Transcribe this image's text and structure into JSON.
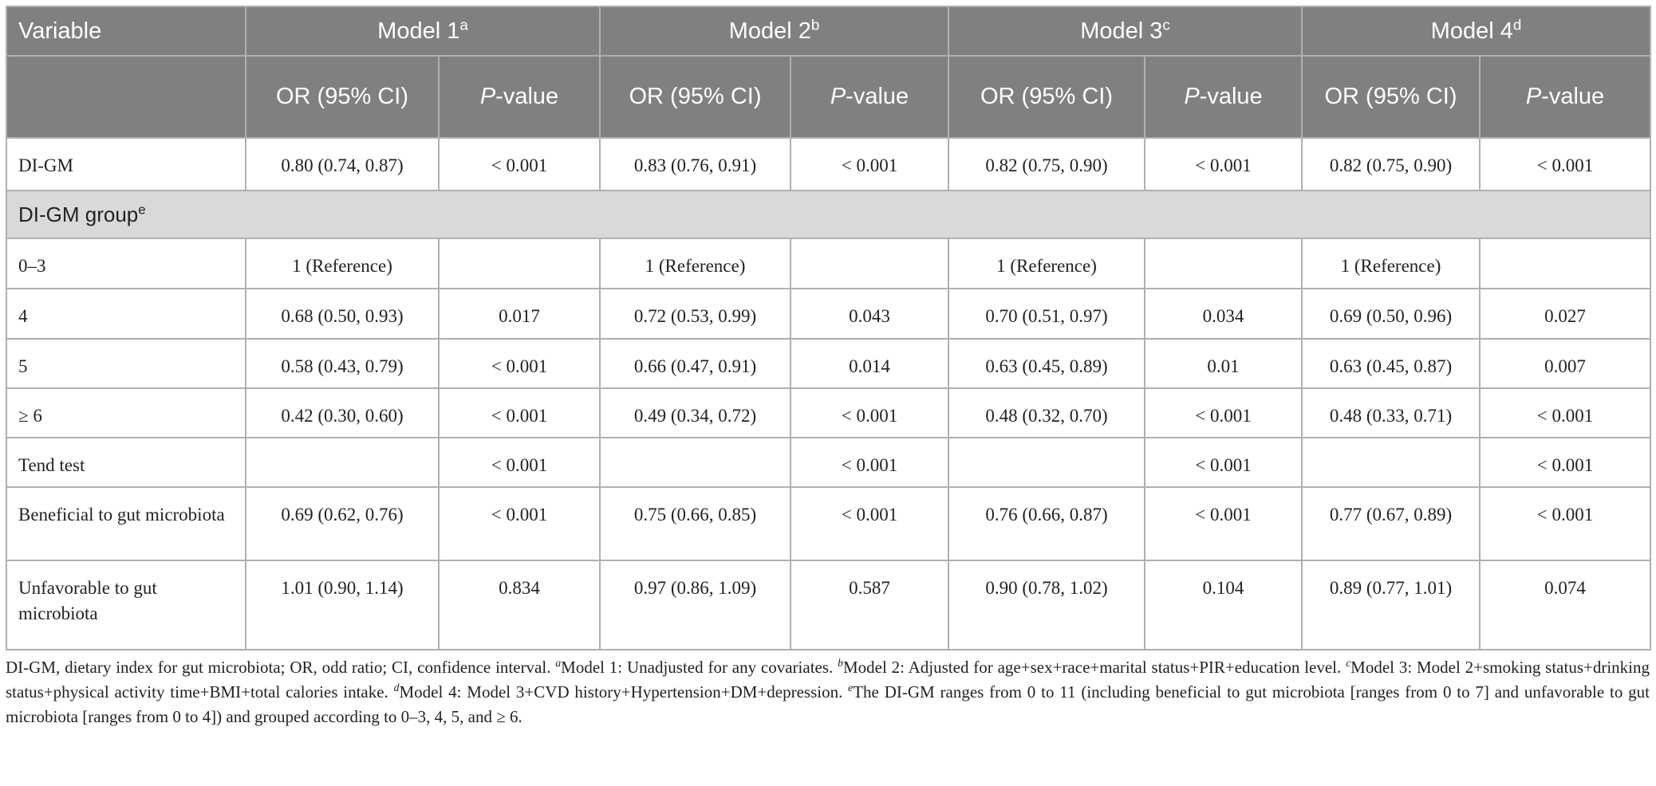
{
  "table": {
    "header": {
      "variable": "Variable",
      "models": [
        {
          "text": "Model 1",
          "sup": "a"
        },
        {
          "text": "Model 2",
          "sup": "b"
        },
        {
          "text": "Model 3",
          "sup": "c"
        },
        {
          "text": "Model 4",
          "sup": "d"
        }
      ],
      "subheaders": [
        {
          "text": "OR (95% CI)"
        },
        {
          "italic": "P",
          "text": "-value"
        },
        {
          "text": "OR (95% CI)"
        },
        {
          "italic": "P",
          "text": "-value"
        },
        {
          "text": "OR (95% CI)"
        },
        {
          "italic": "P",
          "text": "-value"
        },
        {
          "text": "OR (95% CI)"
        },
        {
          "italic": "P",
          "text": "-value"
        }
      ]
    },
    "rows": [
      {
        "label": "DI-GM",
        "cells": [
          "0.80 (0.74, 0.87)",
          "< 0.001",
          "0.83 (0.76, 0.91)",
          "< 0.001",
          "0.82 (0.75, 0.90)",
          "< 0.001",
          "0.82 (0.75, 0.90)",
          "< 0.001"
        ]
      },
      {
        "group": "DI-GM group",
        "sup": "e"
      },
      {
        "label": "0–3",
        "cells": [
          "1 (Reference)",
          null,
          "1 (Reference)",
          null,
          "1 (Reference)",
          null,
          "1 (Reference)",
          null
        ]
      },
      {
        "label": "4",
        "cells": [
          "0.68 (0.50, 0.93)",
          "0.017",
          "0.72 (0.53, 0.99)",
          "0.043",
          "0.70 (0.51, 0.97)",
          "0.034",
          "0.69 (0.50, 0.96)",
          "0.027"
        ]
      },
      {
        "label": "5",
        "cells": [
          "0.58 (0.43, 0.79)",
          "< 0.001",
          "0.66 (0.47, 0.91)",
          "0.014",
          "0.63 (0.45, 0.89)",
          "0.01",
          "0.63 (0.45, 0.87)",
          "0.007"
        ]
      },
      {
        "label": "≥ 6",
        "cells": [
          "0.42 (0.30, 0.60)",
          "< 0.001",
          "0.49 (0.34, 0.72)",
          "< 0.001",
          "0.48 (0.32, 0.70)",
          "< 0.001",
          "0.48 (0.33, 0.71)",
          "< 0.001"
        ]
      },
      {
        "label": "Tend test",
        "cells": [
          null,
          "< 0.001",
          null,
          "< 0.001",
          null,
          "< 0.001",
          null,
          "< 0.001"
        ]
      },
      {
        "label": "Beneficial to gut microbiota",
        "cells": [
          "0.69 (0.62, 0.76)",
          "< 0.001",
          "0.75 (0.66, 0.85)",
          "< 0.001",
          "0.76 (0.66, 0.87)",
          "< 0.001",
          "0.77 (0.67, 0.89)",
          "< 0.001"
        ]
      },
      {
        "label": "Unfavorable to gut microbiota",
        "cells": [
          "1.01 (0.90, 1.14)",
          "0.834",
          "0.97 (0.86, 1.09)",
          "0.587",
          "0.90 (0.78, 1.02)",
          "0.104",
          "0.89 (0.77, 1.01)",
          "0.074"
        ]
      }
    ]
  },
  "footnote": {
    "intro": "DI-GM, dietary index for gut microbiota; OR, odd ratio; CI, confidence interval.",
    "notes": [
      {
        "mark": "a",
        "text": "Model 1: Unadjusted for any covariates."
      },
      {
        "mark": "b",
        "text": "Model 2: Adjusted for age+sex+race+marital status+PIR+education level."
      },
      {
        "mark": "c",
        "text": "Model 3: Model 2+smoking status+drinking status+physical activity time+BMI+total calories intake."
      },
      {
        "mark": "d",
        "text": "Model 4: Model 3+CVD history+Hypertension+DM+depression."
      },
      {
        "mark": "e",
        "text": "The DI-GM ranges from 0 to 11 (including beneficial to gut microbiota [ranges from 0 to 7] and unfavorable to gut microbiota [ranges from 0 to 4]) and grouped according to 0–3, 4, 5, and ≥ 6."
      }
    ]
  }
}
